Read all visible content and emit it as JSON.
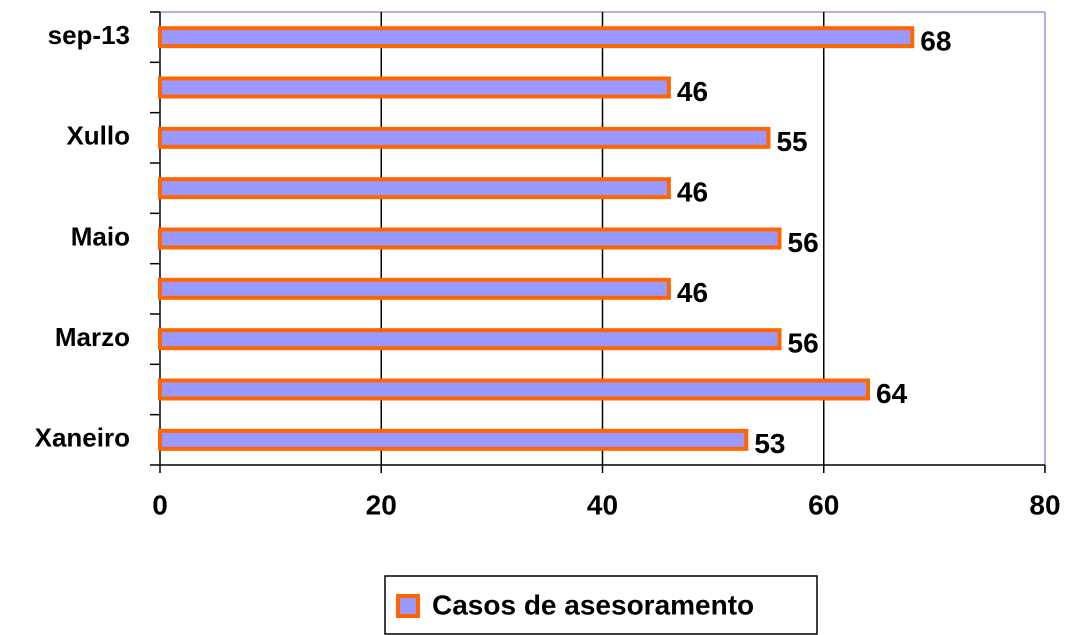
{
  "chart_data": {
    "type": "hbar",
    "categories": [
      "Xaneiro",
      null,
      "Marzo",
      null,
      "Maio",
      null,
      "Xullo",
      null,
      "sep-13"
    ],
    "series": [
      {
        "name": "Casos de asesoramento",
        "color": "#9999ff",
        "edge_color": "#ff6600",
        "values": [
          53,
          64,
          56,
          46,
          56,
          46,
          55,
          46,
          68
        ]
      }
    ],
    "xlim": [
      0,
      80
    ],
    "xticks": [
      0,
      20,
      40,
      60,
      80
    ],
    "grid": true,
    "legend": "bottom"
  }
}
